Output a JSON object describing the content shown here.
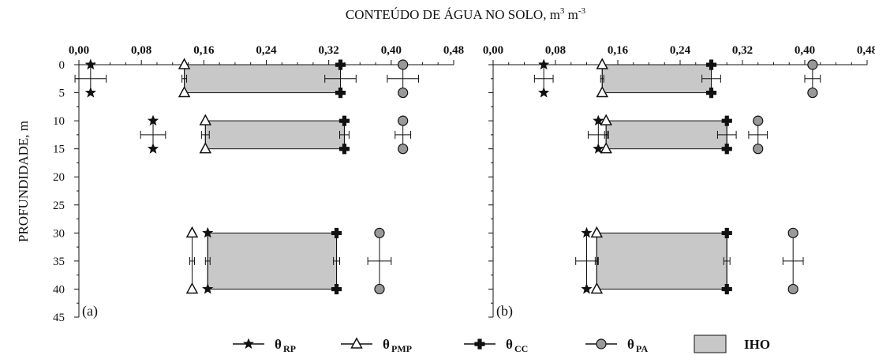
{
  "chart_data": {
    "type": "range-bar",
    "xlabel_main": "CONTEÚDO DE ÁGUA NO SOLO, m",
    "xlabel_sup1": "3",
    "xlabel_mid": " m",
    "xlabel_sup2": "-3",
    "ylabel": "PROFUNDIDADE, m",
    "xlim": [
      0,
      0.48
    ],
    "ylim": [
      0,
      45
    ],
    "x_ticks": [
      "0,00",
      "0,08",
      "0,16",
      "0,24",
      "0,32",
      "0,40",
      "0,48"
    ],
    "y_ticks": [
      "0",
      "5",
      "10",
      "15",
      "20",
      "25",
      "30",
      "35",
      "40",
      "45"
    ],
    "legend": [
      {
        "symbol": "star",
        "label": "θ",
        "sub": "RP"
      },
      {
        "symbol": "triangle",
        "label": "θ",
        "sub": "PMP"
      },
      {
        "symbol": "cross",
        "label": "θ",
        "sub": "CC"
      },
      {
        "symbol": "circle",
        "label": "θ",
        "sub": "PA"
      },
      {
        "symbol": "box",
        "label": "IHO",
        "sub": ""
      }
    ],
    "colors": {
      "iho_fill": "#c8c8c8",
      "pa_fill": "#999999",
      "pa_errbar_highlight": "#c0287a",
      "ink": "#111111"
    },
    "panels": [
      {
        "label": "(a)",
        "layers": [
          {
            "top": 0,
            "bottom": 5,
            "mid": 2.5,
            "rp": 0.015,
            "rp_err": 0.02,
            "pmp": 0.135,
            "pmp_err": 0.003,
            "cc": 0.335,
            "cc_err": 0.02,
            "pa": 0.415,
            "pa_err": 0.02,
            "iho": [
              0.135,
              0.335
            ]
          },
          {
            "top": 10,
            "bottom": 15,
            "mid": 12.5,
            "rp": 0.095,
            "rp_err": 0.016,
            "pmp": 0.162,
            "pmp_err": 0.005,
            "cc": 0.34,
            "cc_err": 0.006,
            "pa": 0.415,
            "pa_err": 0.01,
            "iho": [
              0.162,
              0.34
            ]
          },
          {
            "top": 30,
            "bottom": 40,
            "mid": 35,
            "rp": 0.165,
            "rp_err": 0.003,
            "pmp": 0.145,
            "pmp_err": 0.003,
            "cc": 0.33,
            "cc_err": 0.004,
            "pa": 0.385,
            "pa_err": 0.015,
            "iho": [
              0.165,
              0.33
            ]
          }
        ]
      },
      {
        "label": "(b)",
        "layers": [
          {
            "top": 0,
            "bottom": 5,
            "mid": 2.5,
            "rp": 0.065,
            "rp_err": 0.012,
            "pmp": 0.14,
            "pmp_err": 0.002,
            "cc": 0.28,
            "cc_err": 0.012,
            "pa": 0.41,
            "pa_err": 0.01,
            "iho": [
              0.14,
              0.28
            ]
          },
          {
            "top": 10,
            "bottom": 15,
            "mid": 12.5,
            "rp": 0.135,
            "rp_err": 0.013,
            "pmp": 0.145,
            "pmp_err": 0.002,
            "cc": 0.3,
            "cc_err": 0.012,
            "pa": 0.34,
            "pa_err": 0.012,
            "iho": [
              0.145,
              0.3
            ]
          },
          {
            "top": 30,
            "bottom": 40,
            "mid": 35,
            "rp": 0.12,
            "rp_err": 0.014,
            "pmp": 0.133,
            "pmp_err": 0.002,
            "cc": 0.3,
            "cc_err": 0.004,
            "pa": 0.385,
            "pa_err": 0.013,
            "iho": [
              0.133,
              0.3
            ]
          }
        ]
      }
    ]
  }
}
